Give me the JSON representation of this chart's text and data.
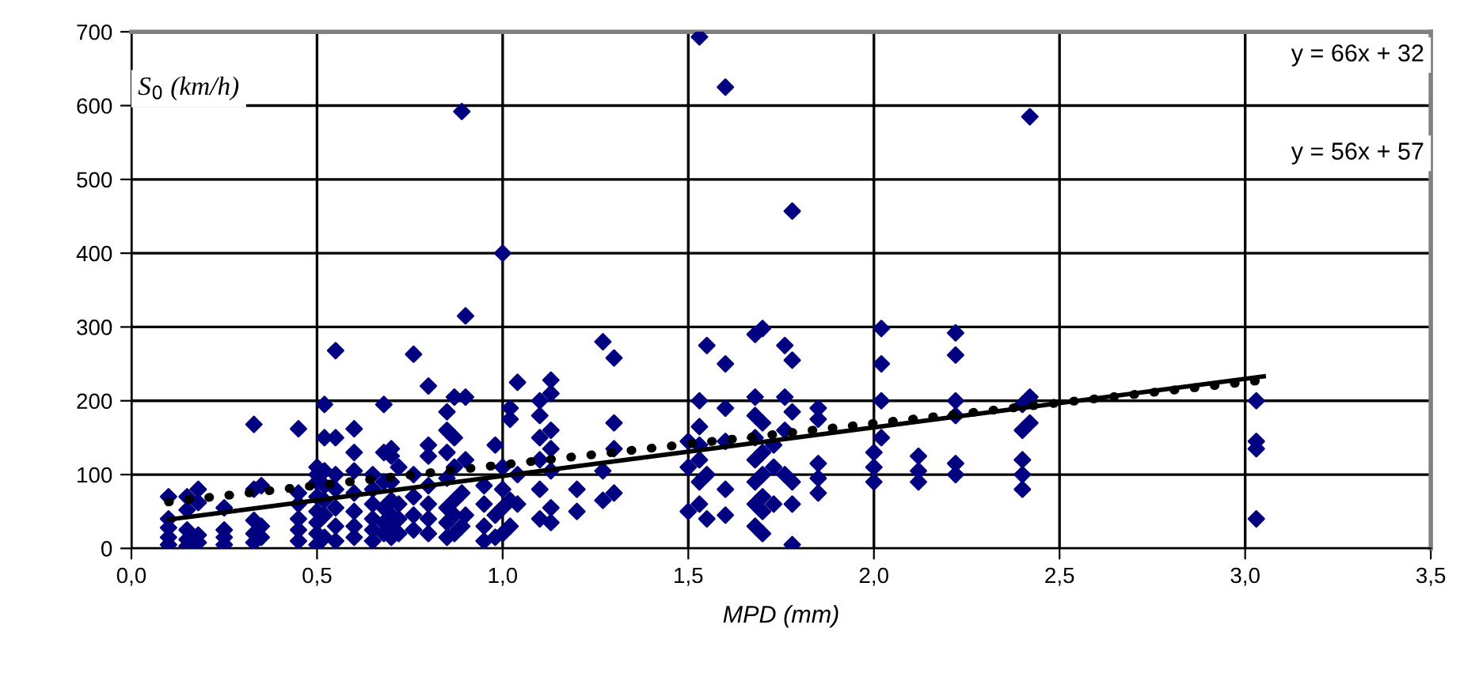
{
  "chart_data": {
    "type": "scatter",
    "xlabel": "MPD (mm)",
    "ylabel": "S$_{0}$ (km/h)",
    "xlim": [
      0,
      3.5
    ],
    "ylim": [
      0,
      700
    ],
    "xticks": [
      {
        "value": 0,
        "label": "0,0"
      },
      {
        "value": 0.5,
        "label": "0,5"
      },
      {
        "value": 1,
        "label": "1,0"
      },
      {
        "value": 1.5,
        "label": "1,5"
      },
      {
        "value": 2,
        "label": "2,0"
      },
      {
        "value": 2.5,
        "label": "2,5"
      },
      {
        "value": 3,
        "label": "3,0"
      },
      {
        "value": 3.5,
        "label": "3,5"
      }
    ],
    "yticks": [
      0,
      100,
      200,
      300,
      400,
      500,
      600,
      700
    ],
    "grid": true,
    "legend": false,
    "annotations": [
      "y = 66x + 32",
      "y = 56x + 57"
    ],
    "series": [
      {
        "color": "#000080",
        "marker": "diamond",
        "x": [
          0.1,
          0.1,
          0.1,
          0.1,
          0.1,
          0.15,
          0.15,
          0.15,
          0.15,
          0.15,
          0.18,
          0.18,
          0.18,
          0.18,
          0.25,
          0.25,
          0.25,
          0.25,
          0.33,
          0.33,
          0.33,
          0.33,
          0.33,
          0.35,
          0.35,
          0.35,
          0.45,
          0.45,
          0.45,
          0.45,
          0.45,
          0.45,
          0.5,
          0.5,
          0.5,
          0.5,
          0.5,
          0.5,
          0.5,
          0.5,
          0.52,
          0.52,
          0.52,
          0.52,
          0.52,
          0.52,
          0.52,
          0.55,
          0.55,
          0.55,
          0.55,
          0.55,
          0.55,
          0.55,
          0.6,
          0.6,
          0.6,
          0.6,
          0.6,
          0.6,
          0.6,
          0.65,
          0.65,
          0.65,
          0.65,
          0.65,
          0.65,
          0.68,
          0.68,
          0.68,
          0.68,
          0.68,
          0.68,
          0.7,
          0.7,
          0.7,
          0.7,
          0.7,
          0.7,
          0.7,
          0.72,
          0.72,
          0.72,
          0.72,
          0.76,
          0.76,
          0.76,
          0.76,
          0.76,
          0.8,
          0.8,
          0.8,
          0.8,
          0.8,
          0.8,
          0.8,
          0.85,
          0.85,
          0.85,
          0.85,
          0.85,
          0.85,
          0.85,
          0.87,
          0.87,
          0.87,
          0.87,
          0.87,
          0.87,
          0.89,
          0.89,
          0.89,
          0.9,
          0.9,
          0.9,
          0.9,
          0.95,
          0.95,
          0.95,
          0.95,
          0.98,
          0.98,
          0.98,
          1.0,
          1.0,
          1.0,
          1.0,
          1.0,
          1.02,
          1.02,
          1.02,
          1.02,
          1.04,
          1.04,
          1.04,
          1.1,
          1.1,
          1.1,
          1.1,
          1.1,
          1.1,
          1.13,
          1.13,
          1.13,
          1.13,
          1.13,
          1.13,
          1.13,
          1.2,
          1.2,
          1.27,
          1.27,
          1.27,
          1.3,
          1.3,
          1.3,
          1.3,
          1.5,
          1.5,
          1.5,
          1.53,
          1.53,
          1.53,
          1.53,
          1.53,
          1.53,
          1.53,
          1.55,
          1.55,
          1.55,
          1.6,
          1.6,
          1.6,
          1.6,
          1.6,
          1.6,
          1.68,
          1.68,
          1.68,
          1.68,
          1.68,
          1.68,
          1.68,
          1.68,
          1.7,
          1.7,
          1.7,
          1.7,
          1.7,
          1.7,
          1.7,
          1.73,
          1.73,
          1.73,
          1.76,
          1.76,
          1.76,
          1.76,
          1.78,
          1.78,
          1.78,
          1.78,
          1.78,
          1.78,
          1.85,
          1.85,
          1.85,
          1.85,
          1.85,
          2.0,
          2.0,
          2.0,
          2.02,
          2.02,
          2.02,
          2.02,
          2.12,
          2.12,
          2.12,
          2.22,
          2.22,
          2.22,
          2.22,
          2.22,
          2.22,
          2.4,
          2.4,
          2.4,
          2.4,
          2.4,
          2.42,
          2.42,
          2.42,
          3.03,
          3.03,
          3.03,
          3.03
        ],
        "values": [
          5,
          15,
          28,
          40,
          70,
          3,
          12,
          25,
          52,
          70,
          8,
          18,
          62,
          80,
          5,
          15,
          25,
          55,
          8,
          20,
          38,
          168,
          80,
          15,
          30,
          85,
          10,
          25,
          40,
          60,
          75,
          162,
          5,
          20,
          35,
          50,
          70,
          90,
          100,
          110,
          15,
          45,
          65,
          85,
          105,
          150,
          195,
          10,
          30,
          55,
          80,
          100,
          150,
          268,
          15,
          30,
          50,
          75,
          105,
          130,
          162,
          10,
          25,
          40,
          60,
          80,
          100,
          20,
          35,
          55,
          90,
          130,
          195,
          15,
          30,
          45,
          65,
          90,
          135,
          125,
          20,
          40,
          60,
          110,
          25,
          45,
          70,
          100,
          263,
          20,
          40,
          60,
          85,
          125,
          140,
          220,
          15,
          35,
          55,
          95,
          130,
          160,
          185,
          20,
          45,
          65,
          110,
          150,
          205,
          592,
          30,
          75,
          315,
          205,
          120,
          45,
          10,
          30,
          60,
          85,
          15,
          45,
          140,
          400,
          20,
          55,
          80,
          110,
          30,
          65,
          175,
          190,
          60,
          100,
          225,
          40,
          80,
          120,
          150,
          180,
          200,
          35,
          55,
          105,
          135,
          160,
          210,
          228,
          50,
          80,
          280,
          105,
          65,
          258,
          170,
          135,
          75,
          50,
          110,
          145,
          693,
          200,
          165,
          120,
          60,
          140,
          90,
          275,
          100,
          40,
          625,
          250,
          190,
          145,
          80,
          45,
          30,
          60,
          90,
          120,
          150,
          180,
          205,
          290,
          298,
          170,
          130,
          100,
          20,
          70,
          50,
          60,
          110,
          140,
          275,
          205,
          160,
          100,
          457,
          255,
          185,
          5,
          90,
          60,
          75,
          95,
          115,
          175,
          190,
          90,
          110,
          130,
          298,
          250,
          200,
          150,
          90,
          105,
          125,
          292,
          262,
          200,
          180,
          100,
          115,
          80,
          100,
          120,
          160,
          195,
          585,
          205,
          170,
          200,
          145,
          135,
          40
        ]
      },
      {
        "type": "line",
        "color": "#000000",
        "line_style": "solid",
        "x": [
          0.1,
          3.05
        ],
        "values": [
          39,
          233
        ]
      },
      {
        "type": "line",
        "color": "#000000",
        "line_style": "dotted",
        "x": [
          0.1,
          3.03
        ],
        "values": [
          63,
          227
        ]
      }
    ]
  }
}
